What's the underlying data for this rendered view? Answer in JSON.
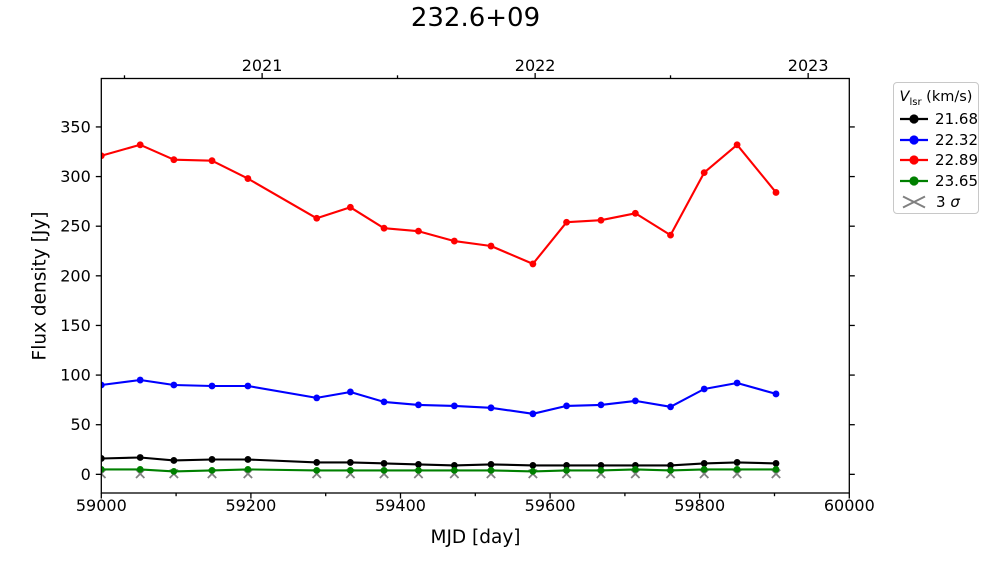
{
  "title": "232.6+09",
  "chart_data": {
    "type": "line",
    "title": "232.6+09",
    "xlabel": "MJD [day]",
    "ylabel": "Flux density [Jy]",
    "xlim": [
      59000,
      60000
    ],
    "ylim": [
      -18.8,
      398.8
    ],
    "x_ticks": [
      59000,
      59200,
      59400,
      59600,
      59800,
      60000
    ],
    "x_minor_ticks": [
      59100,
      59300,
      59500,
      59700,
      59900
    ],
    "y_ticks": [
      0,
      50,
      100,
      150,
      200,
      250,
      300,
      350
    ],
    "top_axis": {
      "ticks": [
        {
          "label": "2021",
          "mjd": 59215
        },
        {
          "label": "2022",
          "mjd": 59580
        },
        {
          "label": "2023",
          "mjd": 59945
        }
      ],
      "minor_mjd": [
        59031,
        59396,
        59761
      ]
    },
    "x_mjd": [
      59000,
      59052,
      59097,
      59148,
      59196,
      59288,
      59333,
      59378,
      59424,
      59472,
      59521,
      59577,
      59622,
      59668,
      59714,
      59761,
      59806,
      59850,
      59902
    ],
    "series": [
      {
        "name": "21.68",
        "color": "#000000",
        "marker": "circle",
        "values": [
          16,
          17,
          14,
          15,
          15,
          12,
          12,
          11,
          10,
          9,
          10,
          9,
          9,
          9,
          9,
          9,
          11,
          12,
          11
        ]
      },
      {
        "name": "22.32",
        "color": "#0000ff",
        "marker": "circle",
        "values": [
          90,
          95,
          90,
          89,
          89,
          77,
          83,
          73,
          70,
          69,
          67,
          61,
          69,
          70,
          74,
          68,
          86,
          92,
          81
        ]
      },
      {
        "name": "22.89",
        "color": "#ff0000",
        "marker": "circle",
        "values": [
          321,
          332,
          317,
          316,
          298,
          258,
          269,
          248,
          245,
          235,
          230,
          212,
          254,
          256,
          263,
          241,
          304,
          332,
          284
        ]
      },
      {
        "name": "23.65",
        "color": "#008000",
        "marker": "circle",
        "values": [
          5,
          5,
          3,
          4,
          5,
          4,
          4,
          4,
          4,
          4,
          4,
          3,
          4,
          4,
          5,
          4,
          5,
          5,
          5
        ]
      },
      {
        "name": "3 σ",
        "color": "#808080",
        "marker": "x",
        "values": [
          0.5,
          0.5,
          0.5,
          0.5,
          0.5,
          0.5,
          0.5,
          0.5,
          0.5,
          0.5,
          0.5,
          0.5,
          0.5,
          0.5,
          0.5,
          0.5,
          0.5,
          0.5,
          0.5
        ]
      }
    ],
    "legend": {
      "title_var": "V",
      "title_sub": "lsr",
      "title_units": " (km/s)",
      "position": "outside-right"
    }
  }
}
